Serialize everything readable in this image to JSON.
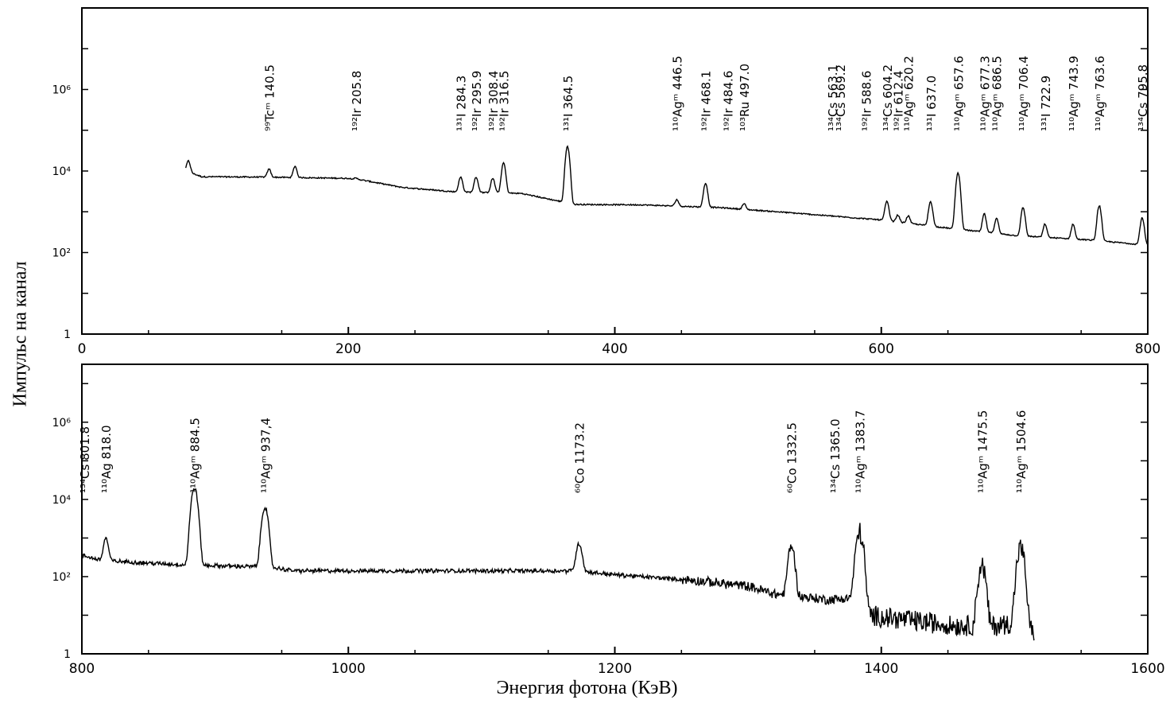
{
  "chart_data": [
    {
      "type": "line",
      "panel": "top",
      "scale": "log",
      "xlim": [
        0,
        800
      ],
      "ylim_log10": [
        0,
        8
      ],
      "grid": false,
      "x_ticks": [
        "0",
        "200",
        "400",
        "600",
        "800"
      ],
      "x_tick_values": [
        0,
        200,
        400,
        600,
        800
      ],
      "y_ticks": [
        {
          "label": "1",
          "log10": 0
        },
        {
          "label": "10²",
          "log10": 2
        },
        {
          "label": "10⁴",
          "log10": 4
        },
        {
          "label": "10⁶",
          "log10": 6
        }
      ],
      "baseline": [
        [
          78,
          4.0
        ],
        [
          90,
          3.86
        ],
        [
          140,
          3.85
        ],
        [
          200,
          3.82
        ],
        [
          210,
          3.78
        ],
        [
          240,
          3.6
        ],
        [
          280,
          3.49
        ],
        [
          330,
          3.45
        ],
        [
          370,
          3.18
        ],
        [
          420,
          3.17
        ],
        [
          480,
          3.1
        ],
        [
          530,
          2.98
        ],
        [
          600,
          2.8
        ],
        [
          650,
          2.6
        ],
        [
          700,
          2.42
        ],
        [
          760,
          2.3
        ],
        [
          800,
          2.18
        ]
      ],
      "peaks": [
        {
          "x": 80,
          "log10": 4.25,
          "w": 1.2
        },
        {
          "x": 140.5,
          "log10": 4.05,
          "w": 1.2
        },
        {
          "x": 160,
          "log10": 4.12,
          "w": 1.2
        },
        {
          "x": 205.8,
          "log10": 3.82,
          "w": 1.6
        },
        {
          "x": 284.3,
          "log10": 3.85,
          "w": 1.3
        },
        {
          "x": 295.9,
          "log10": 3.85,
          "w": 1.3
        },
        {
          "x": 308.4,
          "log10": 3.82,
          "w": 1.3
        },
        {
          "x": 316.5,
          "log10": 4.2,
          "w": 1.3
        },
        {
          "x": 364.5,
          "log10": 4.6,
          "w": 1.3
        },
        {
          "x": 446.5,
          "log10": 3.3,
          "w": 1.2
        },
        {
          "x": 468.1,
          "log10": 3.7,
          "w": 1.3
        },
        {
          "x": 484.6,
          "log10": 3.05,
          "w": 1.2
        },
        {
          "x": 497.0,
          "log10": 3.2,
          "w": 1.2
        },
        {
          "x": 604.2,
          "log10": 3.25,
          "w": 1.3
        },
        {
          "x": 612.4,
          "log10": 2.92,
          "w": 1.2
        },
        {
          "x": 620.2,
          "log10": 2.9,
          "w": 1.2
        },
        {
          "x": 637.0,
          "log10": 3.25,
          "w": 1.3
        },
        {
          "x": 657.6,
          "log10": 3.95,
          "w": 1.3
        },
        {
          "x": 677.3,
          "log10": 2.95,
          "w": 1.2
        },
        {
          "x": 686.5,
          "log10": 2.85,
          "w": 1.2
        },
        {
          "x": 706.4,
          "log10": 3.1,
          "w": 1.3
        },
        {
          "x": 722.9,
          "log10": 2.7,
          "w": 1.2
        },
        {
          "x": 743.9,
          "log10": 2.7,
          "w": 1.2
        },
        {
          "x": 763.6,
          "log10": 3.15,
          "w": 1.3
        },
        {
          "x": 795.8,
          "log10": 2.85,
          "w": 1.3
        }
      ],
      "noise_amp": 0,
      "line_labels": [
        {
          "x": 140.5,
          "iso": "⁹⁹Tcᵐ",
          "energy": "140.5"
        },
        {
          "x": 205.8,
          "iso": "¹⁹²Ir",
          "energy": "205.8"
        },
        {
          "x": 284.3,
          "iso": "¹³¹I",
          "energy": "284.3"
        },
        {
          "x": 295.9,
          "iso": "¹⁹²Ir",
          "energy": "295.9"
        },
        {
          "x": 308.4,
          "iso": "¹⁹²Ir",
          "energy": "308.4"
        },
        {
          "x": 316.5,
          "iso": "¹⁹²Ir",
          "energy": "316.5"
        },
        {
          "x": 364.5,
          "iso": "¹³¹I",
          "energy": "364.5"
        },
        {
          "x": 446.5,
          "iso": "¹¹⁰Agᵐ",
          "energy": "446.5"
        },
        {
          "x": 468.1,
          "iso": "¹⁹²Ir",
          "energy": "468.1"
        },
        {
          "x": 484.6,
          "iso": "¹⁹²Ir",
          "energy": "484.6"
        },
        {
          "x": 497.0,
          "iso": "¹⁰³Ru",
          "energy": "497.0"
        },
        {
          "x": 563.1,
          "iso": "¹³⁴Cs",
          "energy": "563.1"
        },
        {
          "x": 569.2,
          "iso": "¹³⁴Cs",
          "energy": "569.2"
        },
        {
          "x": 588.6,
          "iso": "¹⁹²Ir",
          "energy": "588.6"
        },
        {
          "x": 604.2,
          "iso": "¹³⁴Cs",
          "energy": "604.2"
        },
        {
          "x": 612.4,
          "iso": "¹⁹²Ir",
          "energy": "612.4"
        },
        {
          "x": 620.2,
          "iso": "¹¹⁰Agᵐ",
          "energy": "620.2"
        },
        {
          "x": 637.0,
          "iso": "¹³¹I",
          "energy": "637.0"
        },
        {
          "x": 657.6,
          "iso": "¹¹⁰Agᵐ",
          "energy": "657.6"
        },
        {
          "x": 677.3,
          "iso": "¹¹⁰Agᵐ",
          "energy": "677.3"
        },
        {
          "x": 686.5,
          "iso": "¹¹⁰Agᵐ",
          "energy": "686.5"
        },
        {
          "x": 706.4,
          "iso": "¹¹⁰Agᵐ",
          "energy": "706.4"
        },
        {
          "x": 722.9,
          "iso": "¹³¹I",
          "energy": "722.9"
        },
        {
          "x": 743.9,
          "iso": "¹¹⁰Agᵐ",
          "energy": "743.9"
        },
        {
          "x": 763.6,
          "iso": "¹¹⁰Agᵐ",
          "energy": "763.6"
        },
        {
          "x": 795.8,
          "iso": "¹³⁴Cs",
          "energy": "795.8"
        }
      ]
    },
    {
      "type": "line",
      "panel": "bottom",
      "scale": "log",
      "xlim": [
        800,
        1600
      ],
      "ylim_log10": [
        0,
        7.5
      ],
      "grid": false,
      "x_ticks": [
        "800",
        "1000",
        "1200",
        "1400",
        "1600"
      ],
      "x_tick_values": [
        800,
        1000,
        1200,
        1400,
        1600
      ],
      "y_ticks": [
        {
          "label": "1",
          "log10": 0
        },
        {
          "label": "10²",
          "log10": 2
        },
        {
          "label": "10⁴",
          "log10": 4
        },
        {
          "label": "10⁶",
          "log10": 6
        }
      ],
      "baseline": [
        [
          800,
          2.55
        ],
        [
          815,
          2.42
        ],
        [
          850,
          2.35
        ],
        [
          880,
          2.3
        ],
        [
          940,
          2.25
        ],
        [
          960,
          2.15
        ],
        [
          1100,
          2.15
        ],
        [
          1170,
          2.15
        ],
        [
          1200,
          2.05
        ],
        [
          1260,
          1.9
        ],
        [
          1300,
          1.75
        ],
        [
          1320,
          1.55
        ],
        [
          1335,
          1.5
        ],
        [
          1360,
          1.4
        ],
        [
          1380,
          1.45
        ],
        [
          1390,
          1.0
        ],
        [
          1450,
          0.75
        ],
        [
          1480,
          0.7
        ],
        [
          1500,
          0.8
        ],
        [
          1515,
          0.55
        ]
      ],
      "peaks": [
        {
          "x": 818.0,
          "log10": 3.0,
          "w": 1.5
        },
        {
          "x": 884.5,
          "log10": 4.3,
          "w": 1.8
        },
        {
          "x": 937.4,
          "log10": 3.8,
          "w": 1.8
        },
        {
          "x": 1173.2,
          "log10": 2.85,
          "w": 1.8
        },
        {
          "x": 1332.5,
          "log10": 2.8,
          "w": 1.8
        },
        {
          "x": 1383.7,
          "log10": 3.15,
          "w": 2.0
        },
        {
          "x": 1475.5,
          "log10": 2.3,
          "w": 2.0
        },
        {
          "x": 1504.6,
          "log10": 2.75,
          "w": 2.0
        }
      ],
      "noise_amp": 0.12,
      "x_end": 1515,
      "line_labels": [
        {
          "x": 801.8,
          "iso": "¹³⁴Cs",
          "energy": "801.8"
        },
        {
          "x": 818.0,
          "iso": "¹¹⁰Ag",
          "energy": "818.0"
        },
        {
          "x": 884.5,
          "iso": "¹¹⁰Agᵐ",
          "energy": "884.5"
        },
        {
          "x": 937.4,
          "iso": "¹¹⁰Agᵐ",
          "energy": "937,4"
        },
        {
          "x": 1173.2,
          "iso": "⁶⁰Co",
          "energy": "1173.2"
        },
        {
          "x": 1332.5,
          "iso": "⁶⁰Co",
          "energy": "1332.5"
        },
        {
          "x": 1365.0,
          "iso": "¹³⁴Cs",
          "energy": "1365.0"
        },
        {
          "x": 1383.7,
          "iso": "¹¹⁰Agᵐ",
          "energy": "1383.7"
        },
        {
          "x": 1475.5,
          "iso": "¹¹⁰Agᵐ",
          "energy": "1475.5"
        },
        {
          "x": 1504.6,
          "iso": "¹¹⁰Agᵐ",
          "energy": "1504.6"
        }
      ]
    }
  ],
  "ylabel": "Импульс на канал",
  "xlabel": "Энергия фотона (КэВ)"
}
